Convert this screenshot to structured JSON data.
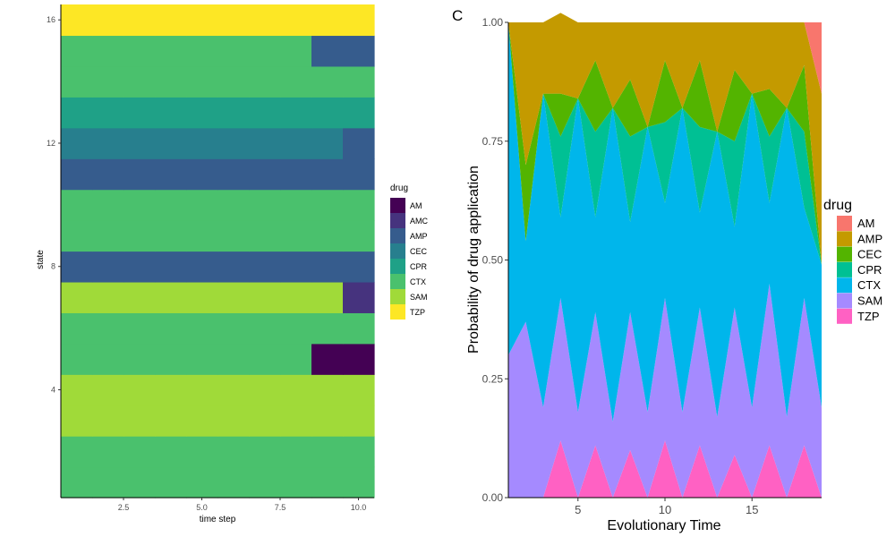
{
  "panel_label": "C",
  "chart_data": [
    {
      "type": "heatmap",
      "xlabel": "time step",
      "ylabel": "state",
      "xlim": [
        0.5,
        10.5
      ],
      "ylim": [
        0.5,
        16.5
      ],
      "x_ticks": [
        2.5,
        5.0,
        7.5,
        10.0
      ],
      "x_tick_labels": [
        "2.5",
        "5.0",
        "7.5",
        "10.0"
      ],
      "y_ticks": [
        4,
        8,
        12,
        16
      ],
      "y_tick_labels": [
        "4",
        "8",
        "12",
        "16"
      ],
      "legend_title": "drug",
      "legend_placement": "right",
      "legend": [
        {
          "name": "AM",
          "color": "#440154"
        },
        {
          "name": "AMC",
          "color": "#46337E"
        },
        {
          "name": "AMP",
          "color": "#365C8D"
        },
        {
          "name": "CEC",
          "color": "#277F8E"
        },
        {
          "name": "CPR",
          "color": "#1FA187"
        },
        {
          "name": "CTX",
          "color": "#4AC16D"
        },
        {
          "name": "SAM",
          "color": "#A0DA39"
        },
        {
          "name": "TZP",
          "color": "#FDE725"
        }
      ],
      "grid": false,
      "rows": [
        {
          "state": 1,
          "cells": [
            "CTX",
            "CTX",
            "CTX",
            "CTX",
            "CTX",
            "CTX",
            "CTX",
            "CTX",
            "CTX",
            "CTX"
          ]
        },
        {
          "state": 2,
          "cells": [
            "CTX",
            "CTX",
            "CTX",
            "CTX",
            "CTX",
            "CTX",
            "CTX",
            "CTX",
            "CTX",
            "CTX"
          ]
        },
        {
          "state": 3,
          "cells": [
            "SAM",
            "SAM",
            "SAM",
            "SAM",
            "SAM",
            "SAM",
            "SAM",
            "SAM",
            "SAM",
            "SAM"
          ]
        },
        {
          "state": 4,
          "cells": [
            "SAM",
            "SAM",
            "SAM",
            "SAM",
            "SAM",
            "SAM",
            "SAM",
            "SAM",
            "SAM",
            "SAM"
          ]
        },
        {
          "state": 5,
          "cells": [
            "CTX",
            "CTX",
            "CTX",
            "CTX",
            "CTX",
            "CTX",
            "CTX",
            "CTX",
            "AM",
            "AM"
          ]
        },
        {
          "state": 6,
          "cells": [
            "CTX",
            "CTX",
            "CTX",
            "CTX",
            "CTX",
            "CTX",
            "CTX",
            "CTX",
            "CTX",
            "CTX"
          ]
        },
        {
          "state": 7,
          "cells": [
            "SAM",
            "SAM",
            "SAM",
            "SAM",
            "SAM",
            "SAM",
            "SAM",
            "SAM",
            "SAM",
            "AMC"
          ]
        },
        {
          "state": 8,
          "cells": [
            "AMP",
            "AMP",
            "AMP",
            "AMP",
            "AMP",
            "AMP",
            "AMP",
            "AMP",
            "AMP",
            "AMP"
          ]
        },
        {
          "state": 9,
          "cells": [
            "CTX",
            "CTX",
            "CTX",
            "CTX",
            "CTX",
            "CTX",
            "CTX",
            "CTX",
            "CTX",
            "CTX"
          ]
        },
        {
          "state": 10,
          "cells": [
            "CTX",
            "CTX",
            "CTX",
            "CTX",
            "CTX",
            "CTX",
            "CTX",
            "CTX",
            "CTX",
            "CTX"
          ]
        },
        {
          "state": 11,
          "cells": [
            "AMP",
            "AMP",
            "AMP",
            "AMP",
            "AMP",
            "AMP",
            "AMP",
            "AMP",
            "AMP",
            "AMP"
          ]
        },
        {
          "state": 12,
          "cells": [
            "CEC",
            "CEC",
            "CEC",
            "CEC",
            "CEC",
            "CEC",
            "CEC",
            "CEC",
            "CEC",
            "AMP"
          ]
        },
        {
          "state": 13,
          "cells": [
            "CPR",
            "CPR",
            "CPR",
            "CPR",
            "CPR",
            "CPR",
            "CPR",
            "CPR",
            "CPR",
            "CPR"
          ]
        },
        {
          "state": 14,
          "cells": [
            "CTX",
            "CTX",
            "CTX",
            "CTX",
            "CTX",
            "CTX",
            "CTX",
            "CTX",
            "CTX",
            "CTX"
          ]
        },
        {
          "state": 15,
          "cells": [
            "CTX",
            "CTX",
            "CTX",
            "CTX",
            "CTX",
            "CTX",
            "CTX",
            "CTX",
            "AMP",
            "AMP"
          ]
        },
        {
          "state": 16,
          "cells": [
            "TZP",
            "TZP",
            "TZP",
            "TZP",
            "TZP",
            "TZP",
            "TZP",
            "TZP",
            "TZP",
            "TZP"
          ]
        }
      ]
    },
    {
      "type": "area",
      "stacked": true,
      "xlabel": "Evolutionary Time",
      "ylabel": "Probability of drug application",
      "xlim": [
        1,
        19
      ],
      "ylim": [
        0,
        1
      ],
      "x_ticks": [
        5,
        10,
        15
      ],
      "x_tick_labels": [
        "5",
        "10",
        "15"
      ],
      "y_ticks": [
        0,
        0.25,
        0.5,
        0.75,
        1
      ],
      "y_tick_labels": [
        "0.00",
        "0.25",
        "0.50",
        "0.75",
        "1.00"
      ],
      "legend_title": "drug",
      "legend_placement": "right",
      "grid": false,
      "x": [
        1,
        2,
        3,
        4,
        5,
        6,
        7,
        8,
        9,
        10,
        11,
        12,
        13,
        14,
        15,
        16,
        17,
        18,
        19
      ],
      "series": [
        {
          "name": "TZP",
          "color": "#FF61C3",
          "values": [
            0,
            0,
            0,
            0.12,
            0,
            0.11,
            0,
            0.1,
            0,
            0.12,
            0,
            0.11,
            0,
            0.09,
            0,
            0.11,
            0,
            0.11,
            0
          ]
        },
        {
          "name": "SAM",
          "color": "#A58AFF",
          "values": [
            0.3,
            0.37,
            0.19,
            0.3,
            0.18,
            0.28,
            0.16,
            0.29,
            0.18,
            0.3,
            0.18,
            0.29,
            0.17,
            0.31,
            0.19,
            0.34,
            0.17,
            0.31,
            0.19
          ]
        },
        {
          "name": "CTX",
          "color": "#00B6EB",
          "values": [
            0.7,
            0.17,
            0.66,
            0.17,
            0.66,
            0.2,
            0.66,
            0.19,
            0.6,
            0.2,
            0.64,
            0.2,
            0.6,
            0.17,
            0.66,
            0.17,
            0.65,
            0.19,
            0.3
          ]
        },
        {
          "name": "CPR",
          "color": "#00C094",
          "values": [
            0,
            0,
            0,
            0.17,
            0,
            0.18,
            0,
            0.18,
            0,
            0.17,
            0,
            0.18,
            0,
            0.18,
            0,
            0.14,
            0,
            0.16,
            0
          ]
        },
        {
          "name": "CEC",
          "color": "#53B400",
          "values": [
            0,
            0.16,
            0,
            0.09,
            0,
            0.15,
            0,
            0.12,
            0,
            0.13,
            0,
            0.14,
            0,
            0.15,
            0,
            0.1,
            0,
            0.14,
            0
          ]
        },
        {
          "name": "AMP",
          "color": "#C49A00",
          "values": [
            0,
            0.3,
            0.15,
            0.17,
            0.16,
            0.08,
            0.18,
            0.12,
            0.22,
            0.08,
            0.18,
            0.08,
            0.23,
            0.1,
            0.15,
            0.14,
            0.18,
            0.09,
            0.36
          ]
        },
        {
          "name": "AM",
          "color": "#F8766D",
          "values": [
            0,
            0,
            0,
            0,
            0,
            0,
            0,
            0,
            0,
            0,
            0,
            0,
            0,
            0,
            0,
            0,
            0,
            0,
            0.15
          ]
        }
      ],
      "legend_order": [
        "AM",
        "AMP",
        "CEC",
        "CPR",
        "CTX",
        "SAM",
        "TZP"
      ]
    }
  ]
}
